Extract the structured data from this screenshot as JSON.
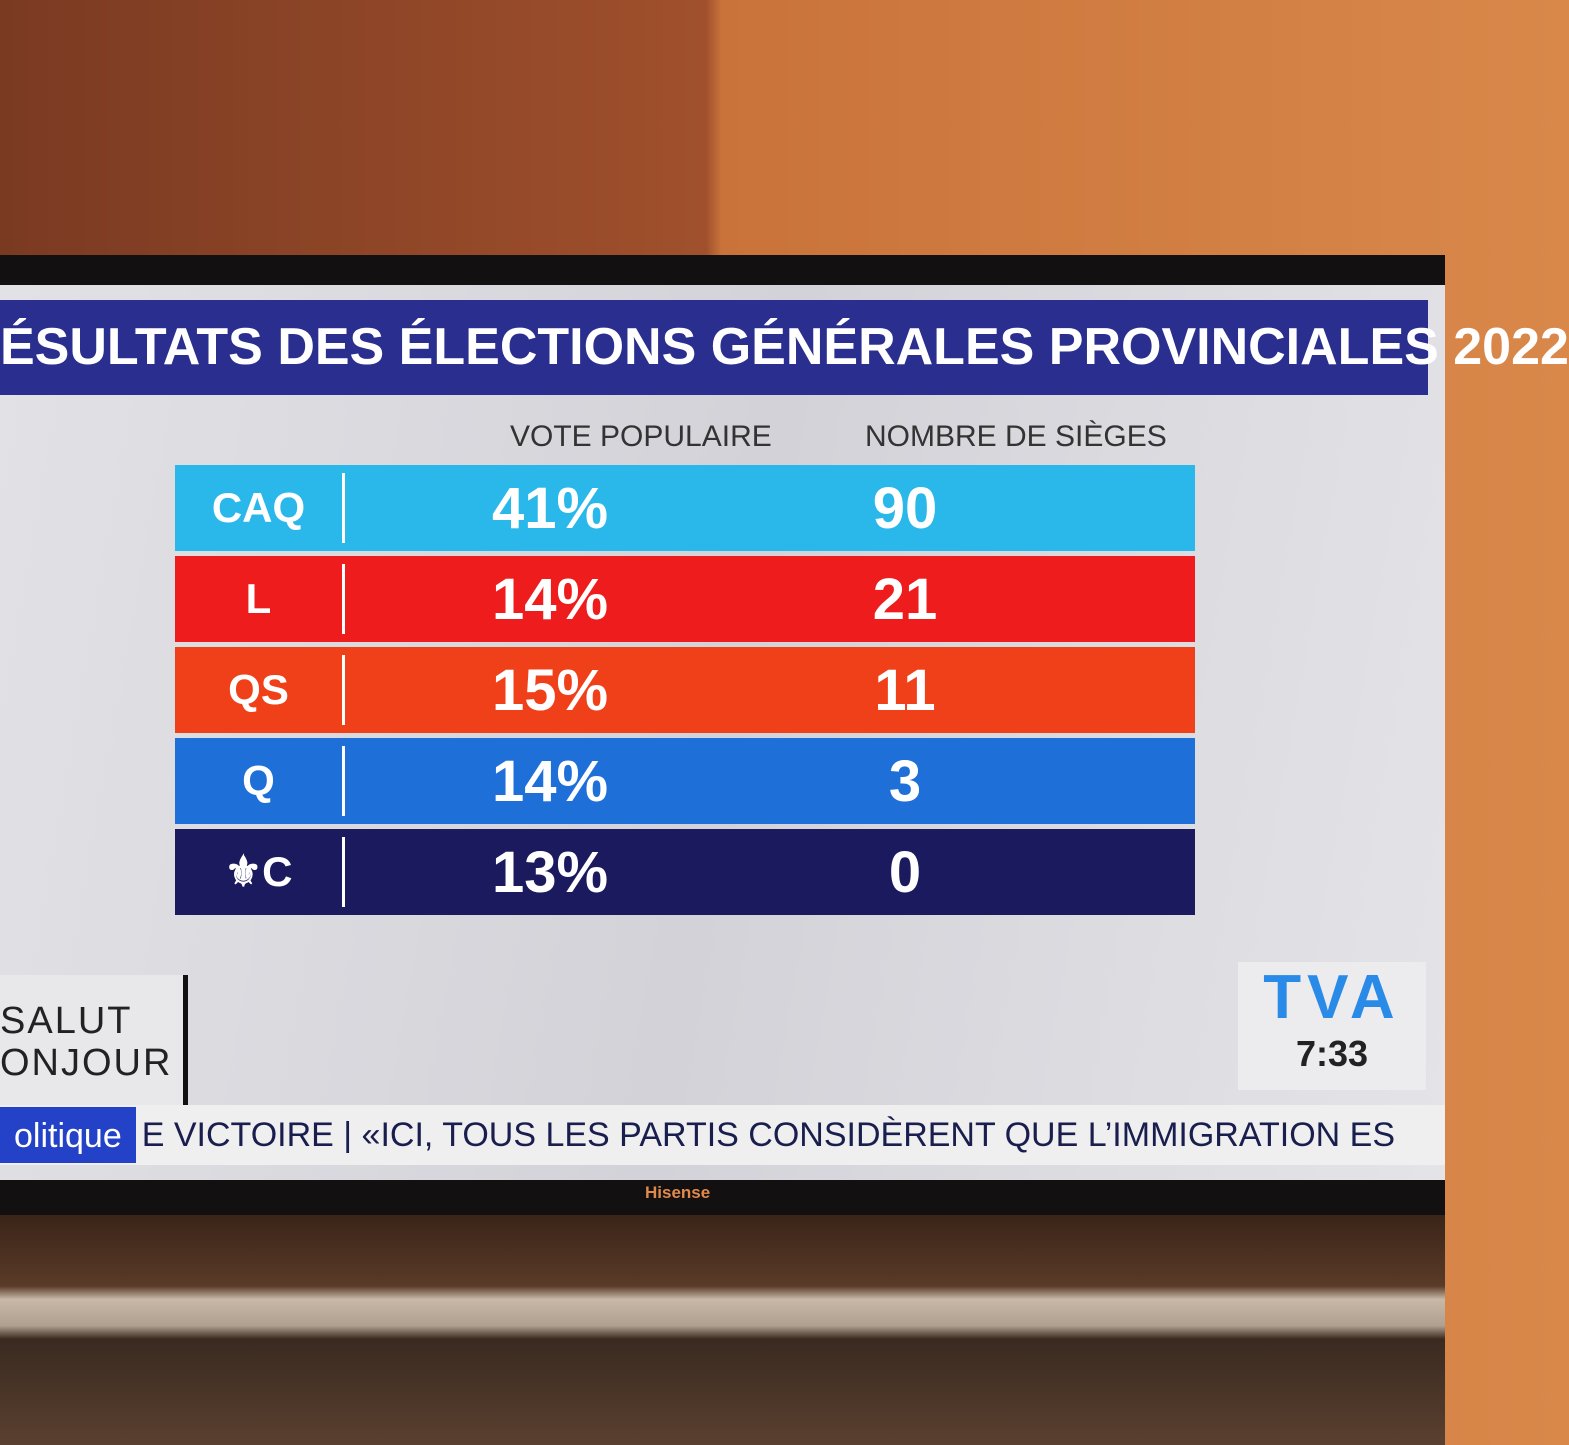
{
  "title": "ÉSULTATS DES ÉLECTIONS GÉNÉRALES PROVINCIALES 2022",
  "columns": [
    "VOTE POPULAIRE",
    "NOMBRE DE SIÈGES"
  ],
  "rows": [
    {
      "logo": "CAQ",
      "vote": "41%",
      "seats": "90",
      "color": "#2ab8ea"
    },
    {
      "logo": "L",
      "vote": "14%",
      "seats": "21",
      "color": "#ee1c1c"
    },
    {
      "logo": "QS",
      "vote": "15%",
      "seats": "11",
      "color": "#f0401a"
    },
    {
      "logo": "Q",
      "vote": "14%",
      "seats": "3",
      "color": "#1f6fd8"
    },
    {
      "logo": "⚜C",
      "vote": "13%",
      "seats": "0",
      "color": "#1c1a5e"
    }
  ],
  "show": {
    "line1": "SALUT",
    "line2": "ONJOUR"
  },
  "tva": {
    "logo": "TVA",
    "time": "7:33"
  },
  "ticker": {
    "category": "olitique",
    "text": "E VICTOIRE | «ICI, TOUS LES PARTIS CONSIDÈRENT QUE L’IMMIGRATION ES"
  },
  "tv_brand": "Hisense"
}
